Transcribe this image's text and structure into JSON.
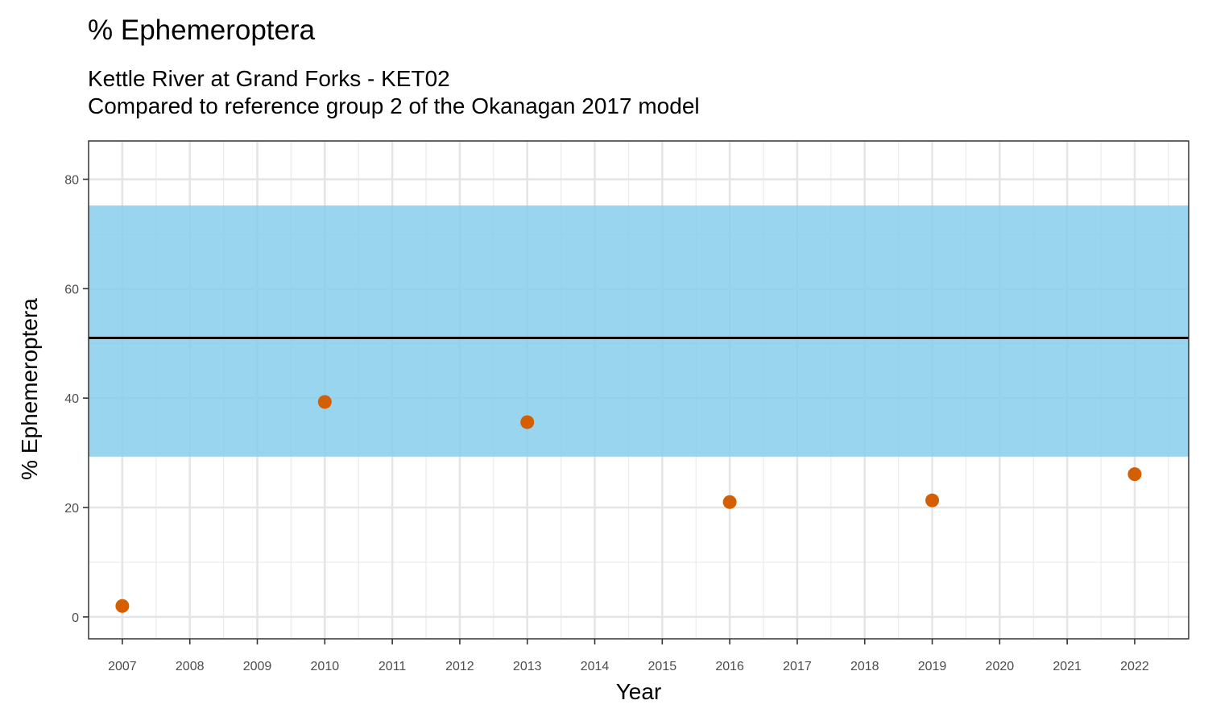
{
  "chart_data": {
    "type": "scatter",
    "title": "% Ephemeroptera",
    "subtitle_lines": [
      "Kettle River at Grand Forks - KET02",
      "Compared to reference group 2 of the Okanagan 2017 model"
    ],
    "xlabel": "Year",
    "ylabel": "% Ephemeroptera",
    "xlim": [
      2006.5,
      2022.8
    ],
    "ylim": [
      -4,
      87
    ],
    "x_ticks": [
      2007,
      2008,
      2009,
      2010,
      2011,
      2012,
      2013,
      2014,
      2015,
      2016,
      2017,
      2018,
      2019,
      2020,
      2021,
      2022
    ],
    "y_ticks": [
      0,
      20,
      40,
      60,
      80
    ],
    "grid": true,
    "reference_band": {
      "lower": 29.3,
      "upper": 75.2,
      "color": "#87CEEB"
    },
    "reference_line": {
      "value": 51.0,
      "color": "#000000"
    },
    "points": {
      "color": "#D55E00",
      "x": [
        2007,
        2010,
        2013,
        2016,
        2019,
        2022
      ],
      "y": [
        2.0,
        39.3,
        35.6,
        21.0,
        21.3,
        26.1
      ]
    }
  }
}
